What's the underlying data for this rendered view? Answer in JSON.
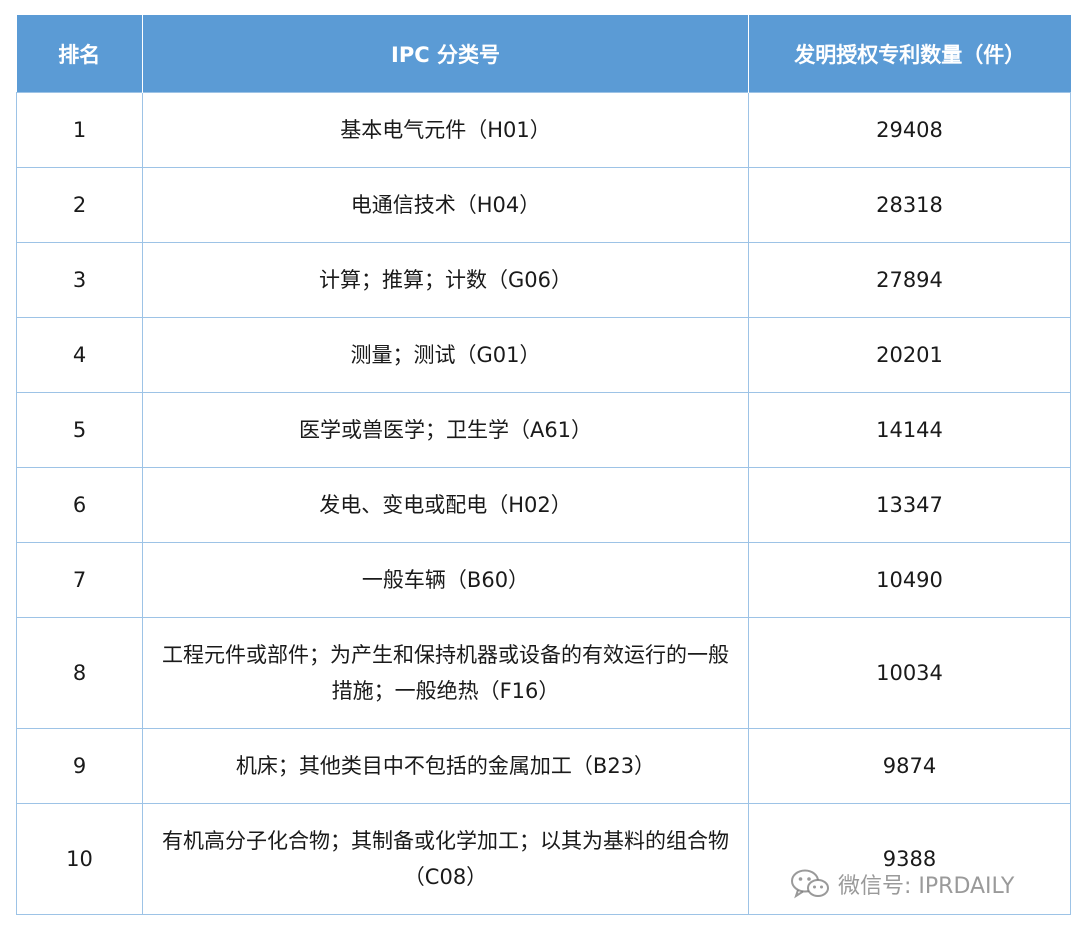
{
  "table": {
    "headers": {
      "rank": "排名",
      "ipc": "IPC 分类号",
      "count": "发明授权专利数量（件）"
    },
    "rows": [
      {
        "rank": "1",
        "ipc": "基本电气元件（H01）",
        "count": "29408"
      },
      {
        "rank": "2",
        "ipc": "电通信技术（H04）",
        "count": "28318"
      },
      {
        "rank": "3",
        "ipc": "计算；推算；计数（G06）",
        "count": "27894"
      },
      {
        "rank": "4",
        "ipc": "测量；测试（G01）",
        "count": "20201"
      },
      {
        "rank": "5",
        "ipc": "医学或兽医学；卫生学（A61）",
        "count": "14144"
      },
      {
        "rank": "6",
        "ipc": "发电、变电或配电（H02）",
        "count": "13347"
      },
      {
        "rank": "7",
        "ipc": "一般车辆（B60）",
        "count": "10490"
      },
      {
        "rank": "8",
        "ipc": "工程元件或部件；为产生和保持机器或设备的有效运行的一般措施；一般绝热（F16）",
        "count": "10034"
      },
      {
        "rank": "9",
        "ipc": "机床；其他类目中不包括的金属加工（B23）",
        "count": "9874"
      },
      {
        "rank": "10",
        "ipc": "有机高分子化合物；其制备或化学加工；以其为基料的组合物（C08）",
        "count": "9388"
      }
    ]
  },
  "watermark": {
    "text": "微信号: IPRDAILY",
    "icon": "wechat-icon"
  },
  "colors": {
    "header_bg": "#5b9bd5",
    "border": "#9dc3e6"
  }
}
